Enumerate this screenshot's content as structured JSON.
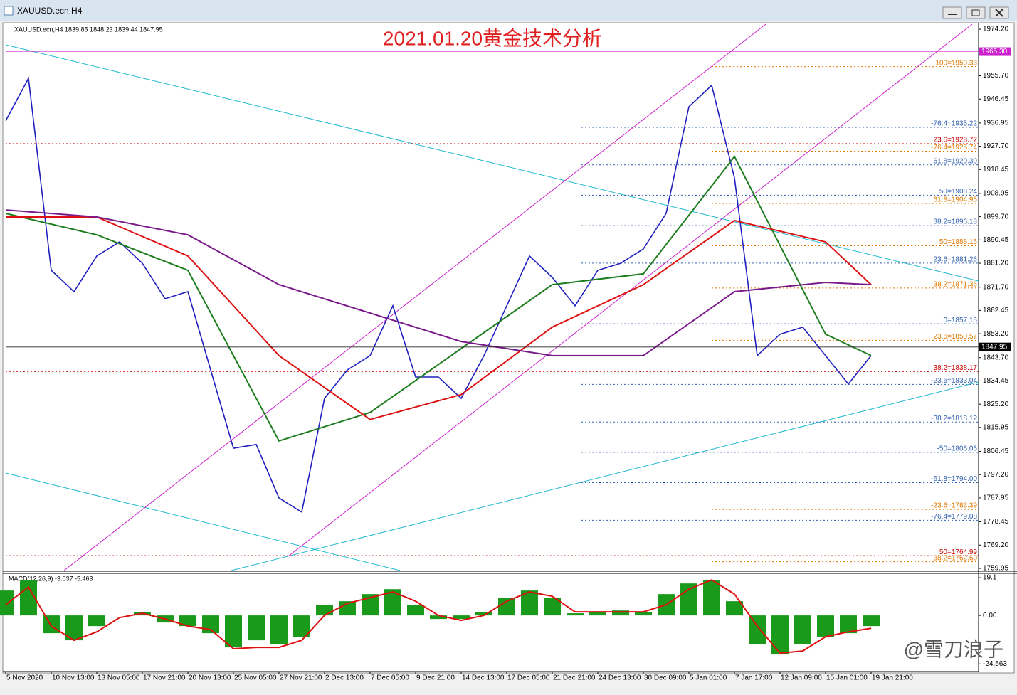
{
  "window": {
    "title": "XAUUSD.ecn,H4"
  },
  "watermark": "@雪刀浪子",
  "chart_data": [
    {
      "type": "line",
      "header": "XAUUSD.ecn,H4  1839.85 1848.23 1839.44 1847.95",
      "title": "2021.01.20黄金技术分析",
      "x": [
        0,
        8,
        16,
        24,
        32,
        40,
        48,
        56,
        64,
        72,
        80,
        88,
        96,
        104,
        112,
        120,
        128,
        136,
        144,
        152,
        160,
        168,
        176,
        184,
        192,
        200,
        208,
        216,
        224,
        232,
        240,
        248,
        256,
        264,
        272,
        280,
        288,
        296,
        304
      ],
      "xlim": [
        0,
        341.75
      ],
      "ylim": [
        1759.1,
        1976.2
      ],
      "series": [
        {
          "color": "#1f1fbf",
          "values": [
            1937.8,
            1954.7,
            1878.4,
            1869.9,
            1884.1,
            1889.7,
            1881.2,
            1867.1,
            1869.9,
            1838.8,
            1807.7,
            1809.2,
            1787.9,
            1782.3,
            1827.5,
            1838.8,
            1844.5,
            1864.3,
            1836.0,
            1836.0,
            1827.5,
            1844.5,
            1864.3,
            1884.1,
            1875.6,
            1864.3,
            1878.4,
            1881.2,
            1886.9,
            1901.0,
            1943.4,
            1951.9,
            1915.1,
            1844.5,
            1853.0,
            1855.8,
            1844.5,
            1833.2,
            1844.5
          ]
        },
        {
          "color": "#1e7d1e",
          "x": [
            0,
            32,
            64,
            96,
            128,
            160,
            192,
            224,
            256,
            288,
            304
          ],
          "values": [
            1901.0,
            1892.5,
            1878.4,
            1810.6,
            1821.9,
            1847.3,
            1872.7,
            1877.0,
            1923.6,
            1853.0,
            1844.5
          ]
        },
        {
          "color": "#dd1111",
          "x": [
            0,
            32,
            64,
            96,
            128,
            160,
            192,
            224,
            256,
            288,
            304
          ],
          "values": [
            1899.6,
            1899.6,
            1884.1,
            1844.5,
            1819.1,
            1829.0,
            1855.8,
            1872.7,
            1898.2,
            1889.7,
            1872.7
          ]
        },
        {
          "color": "#7a1a8a",
          "x": [
            0,
            32,
            64,
            96,
            128,
            160,
            192,
            224,
            256,
            288,
            304
          ],
          "values": [
            1902.4,
            1899.6,
            1892.5,
            1872.7,
            1861.4,
            1850.1,
            1844.5,
            1844.5,
            1869.9,
            1873.6,
            1872.7
          ]
        }
      ],
      "yticks": [
        {
          "value": 1974.2,
          "label": "1974.20"
        },
        {
          "value": 1955.7,
          "label": "1955.70"
        },
        {
          "value": 1946.45,
          "label": "1946.45"
        },
        {
          "value": 1936.95,
          "label": "1936.95"
        },
        {
          "value": 1927.7,
          "label": "1927.70"
        },
        {
          "value": 1918.45,
          "label": "1918.45"
        },
        {
          "value": 1908.95,
          "label": "1908.95"
        },
        {
          "value": 1899.7,
          "label": "1899.70"
        },
        {
          "value": 1890.45,
          "label": "1890.45"
        },
        {
          "value": 1881.2,
          "label": "1881.20"
        },
        {
          "value": 1871.7,
          "label": "1871.70"
        },
        {
          "value": 1862.45,
          "label": "1862.45"
        },
        {
          "value": 1853.2,
          "label": "1853.20"
        },
        {
          "value": 1843.7,
          "label": "1843.70"
        },
        {
          "value": 1834.45,
          "label": "1834.45"
        },
        {
          "value": 1825.2,
          "label": "1825.20"
        },
        {
          "value": 1815.95,
          "label": "1815.95"
        },
        {
          "value": 1806.45,
          "label": "1806.45"
        },
        {
          "value": 1797.2,
          "label": "1797.20"
        },
        {
          "value": 1787.95,
          "label": "1787.95"
        },
        {
          "value": 1778.45,
          "label": "1778.45"
        },
        {
          "value": 1769.2,
          "label": "1769.20"
        },
        {
          "value": 1759.95,
          "label": "1759.95"
        }
      ],
      "xticks": [
        {
          "value": 0,
          "label": "5 Nov 2020"
        },
        {
          "value": 16,
          "label": "10 Nov 13:00"
        },
        {
          "value": 32,
          "label": "13 Nov 05:00"
        },
        {
          "value": 48,
          "label": "17 Nov 21:00"
        },
        {
          "value": 64,
          "label": "20 Nov 13:00"
        },
        {
          "value": 80,
          "label": "25 Nov 05:00"
        },
        {
          "value": 96,
          "label": "27 Nov 21:00"
        },
        {
          "value": 112,
          "label": "2 Dec 13:00"
        },
        {
          "value": 128,
          "label": "7 Dec 05:00"
        },
        {
          "value": 144,
          "label": "9 Dec 21:00"
        },
        {
          "value": 160,
          "label": "14 Dec 13:00"
        },
        {
          "value": 176,
          "label": "17 Dec 05:00"
        },
        {
          "value": 192,
          "label": "21 Dec 21:00"
        },
        {
          "value": 208,
          "label": "24 Dec 13:00"
        },
        {
          "value": 224,
          "label": "30 Dec 09:00"
        },
        {
          "value": 240,
          "label": "5 Jan 01:00"
        },
        {
          "value": 256,
          "label": "7 Jan 17:00"
        },
        {
          "value": 272,
          "label": "12 Jan 09:00"
        },
        {
          "value": 288,
          "label": "15 Jan 01:00"
        },
        {
          "value": 304,
          "label": "19 Jan 21:00"
        }
      ],
      "levels": [
        {
          "value": 1959.33,
          "label": "100=1959.33",
          "color": "#e07800"
        },
        {
          "value": 1935.22,
          "label": "-76.4=1935.22",
          "color": "#3060b0"
        },
        {
          "value": 1928.72,
          "label": "23.6=1928.72",
          "color": "#cc0000"
        },
        {
          "value": 1925.74,
          "label": "-76.4=1925.74",
          "color": "#e07800"
        },
        {
          "value": 1920.3,
          "label": "61.8=1920.30",
          "color": "#3060b0"
        },
        {
          "value": 1908.24,
          "label": "50=1908.24",
          "color": "#3060b0"
        },
        {
          "value": 1904.95,
          "label": "61.8=1904.95",
          "color": "#e07800"
        },
        {
          "value": 1896.18,
          "label": "38.2=1896.18",
          "color": "#3060b0"
        },
        {
          "value": 1888.15,
          "label": "50=1888.15",
          "color": "#e07800"
        },
        {
          "value": 1881.26,
          "label": "23.6=1881.26",
          "color": "#3060b0"
        },
        {
          "value": 1871.36,
          "label": "38.2=1871.36",
          "color": "#e07800"
        },
        {
          "value": 1857.15,
          "label": "0=1857.15",
          "color": "#3060b0"
        },
        {
          "value": 1850.57,
          "label": "23.6=1850.57",
          "color": "#e07800"
        },
        {
          "value": 1838.17,
          "label": "38.2=1838.17",
          "color": "#cc0000"
        },
        {
          "value": 1833.04,
          "label": "-23.6=1833.04",
          "color": "#3060b0"
        },
        {
          "value": 1818.12,
          "label": "-38.2=1818.12",
          "color": "#3060b0"
        },
        {
          "value": 1806.06,
          "label": "-50=1806.06",
          "color": "#3060b0"
        },
        {
          "value": 1794.0,
          "label": "-61.8=1794.00",
          "color": "#3060b0"
        },
        {
          "value": 1783.39,
          "label": "-23.6=1783.39",
          "color": "#e07800"
        },
        {
          "value": 1779.08,
          "label": "-76.4=1779.08",
          "color": "#3060b0"
        },
        {
          "value": 1764.99,
          "label": "50=1764.99",
          "color": "#cc0000"
        },
        {
          "value": 1762.6,
          "label": "-38.2=1762.60",
          "color": "#e07800"
        }
      ],
      "markers": [
        {
          "value": 1965.3,
          "label": "1965.30",
          "color": "#cc22cc"
        },
        {
          "value": 1847.95,
          "label": "1847.95",
          "color": "#000000"
        }
      ]
    },
    {
      "type": "macd",
      "header": "MACD(12,26,9) -3.037 -5.463",
      "x": [
        0,
        8,
        16,
        24,
        32,
        40,
        48,
        56,
        64,
        72,
        80,
        88,
        96,
        104,
        112,
        120,
        128,
        136,
        144,
        152,
        160,
        168,
        176,
        184,
        192,
        200,
        208,
        216,
        224,
        232,
        240,
        248,
        256,
        264,
        272,
        280,
        288,
        296,
        304
      ],
      "xlim": [
        0,
        341.75
      ],
      "ylim": [
        -27.7,
        21.3
      ],
      "yticks": [
        19.1,
        {
          "value": 0,
          "label": "0.00"
        },
        -24.563
      ],
      "histogram": {
        "color": "#1a9a1a",
        "values": [
          12.6,
          18,
          -9,
          -12.6,
          -5.4,
          0,
          1.8,
          -3.6,
          -5.4,
          -9,
          -16.2,
          -12.6,
          -14.4,
          -10.8,
          5.4,
          7.2,
          10.8,
          13.3,
          5.4,
          -1.8,
          -1.8,
          1.8,
          9,
          12.6,
          9,
          1.1,
          1.8,
          2.5,
          1.8,
          10.8,
          16.2,
          18,
          7.2,
          -14.4,
          -19.8,
          -14.4,
          -10.8,
          -9,
          -5.4
        ]
      },
      "signal": {
        "color": "#dd1111",
        "values": [
          5.4,
          14.4,
          -5.4,
          -12.6,
          -8.3,
          -1.1,
          1.1,
          -1.8,
          -5.4,
          -7.2,
          -16.9,
          -16.2,
          -16.2,
          -12.6,
          0,
          6.1,
          9,
          11.9,
          7.2,
          0,
          -2.5,
          0,
          7.2,
          11.9,
          9.7,
          1.8,
          1.8,
          1.8,
          1.8,
          5.4,
          13.3,
          18,
          10.8,
          -5.4,
          -19.1,
          -18,
          -10.8,
          -8.3,
          -6.5
        ]
      }
    }
  ]
}
